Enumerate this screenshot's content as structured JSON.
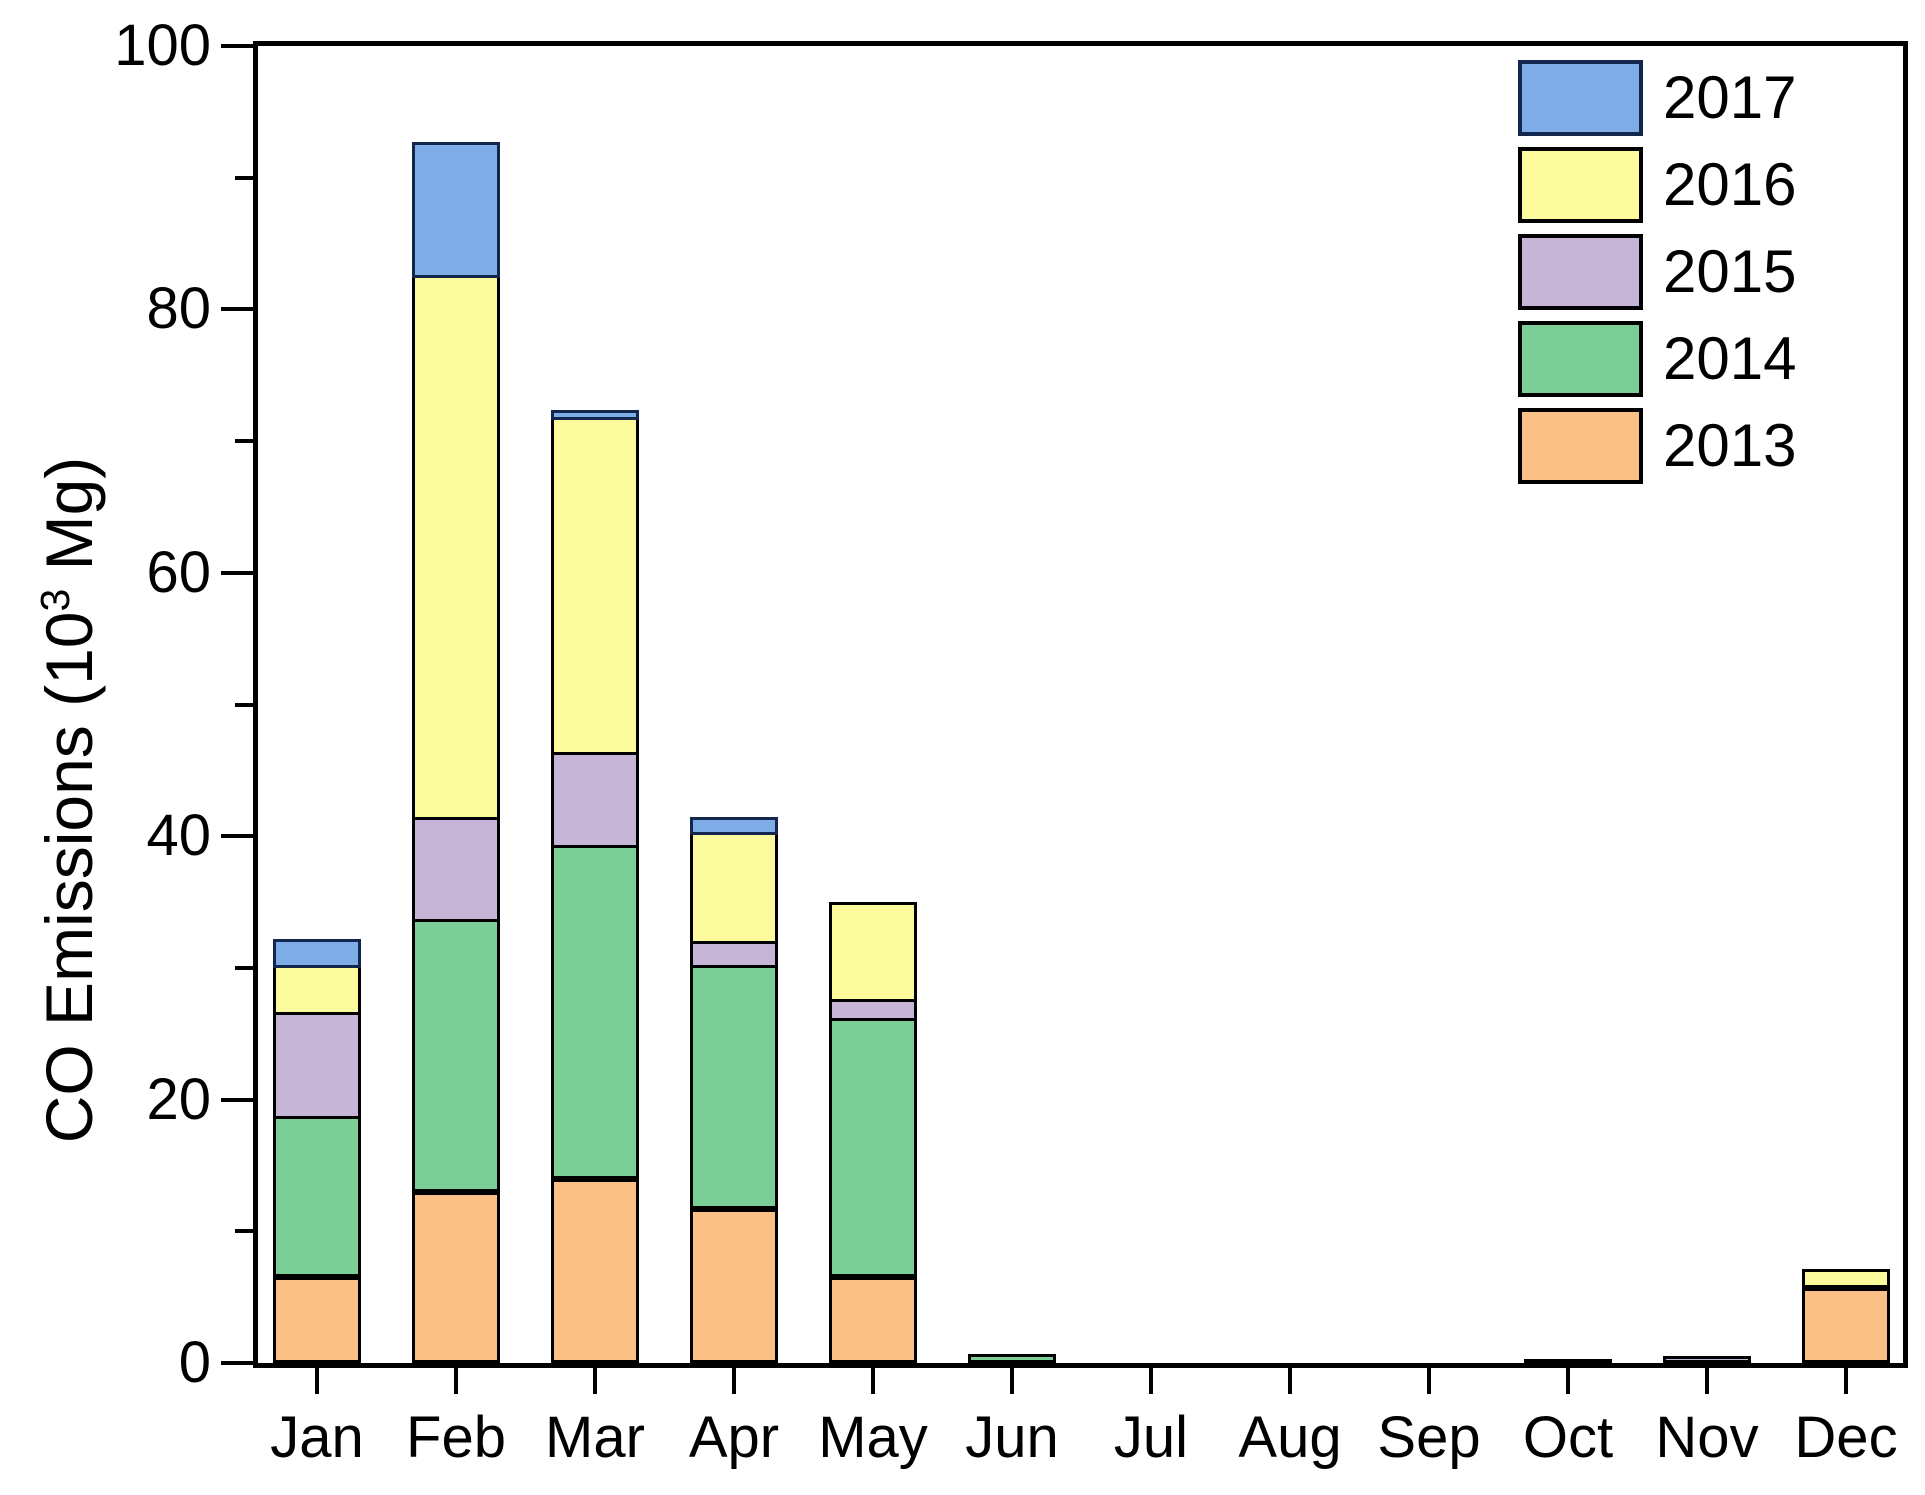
{
  "figure": {
    "background": "#ffffff",
    "frame_color": "#000000"
  },
  "y_axis": {
    "title_prefix": "CO Emissions (10",
    "title_sup": "3",
    "title_suffix": " Mg)"
  },
  "chart_data": {
    "type": "bar",
    "stacked": true,
    "title": "",
    "xlabel": "",
    "ylabel": "CO Emissions (10^3 Mg)",
    "grid": false,
    "ylim": [
      0,
      100
    ],
    "yticks_major": [
      0,
      20,
      40,
      60,
      80,
      100
    ],
    "yticks_minor": [
      10,
      30,
      50,
      70,
      90
    ],
    "categories": [
      "Jan",
      "Feb",
      "Mar",
      "Apr",
      "May",
      "Jun",
      "Jul",
      "Aug",
      "Sep",
      "Oct",
      "Nov",
      "Dec"
    ],
    "series": [
      {
        "name": "2013",
        "color": "#FBC086",
        "border": "#000000",
        "values": [
          6.5,
          13.0,
          14.0,
          11.7,
          6.5,
          0,
          0,
          0,
          0,
          0,
          0,
          5.7
        ]
      },
      {
        "name": "2014",
        "color": "#7BCE96",
        "border": "#000000",
        "values": [
          12.0,
          20.5,
          25.1,
          18.3,
          19.5,
          0.7,
          0,
          0,
          0,
          0.3,
          0,
          0
        ]
      },
      {
        "name": "2015",
        "color": "#C6B5D6",
        "border": "#000000",
        "values": [
          7.9,
          7.7,
          7.1,
          1.8,
          1.4,
          0,
          0,
          0,
          0,
          0,
          0.5,
          0
        ]
      },
      {
        "name": "2016",
        "color": "#FBFB9D",
        "border": "#000000",
        "values": [
          3.6,
          41.2,
          25.4,
          8.3,
          7.4,
          0,
          0,
          0,
          0,
          0,
          0,
          1.2
        ]
      },
      {
        "name": "2017",
        "color": "#7EACE6",
        "border": "#13264D",
        "values": [
          2.0,
          10.1,
          0.5,
          1.1,
          0,
          0,
          0,
          0,
          0,
          0,
          0,
          0
        ]
      }
    ],
    "legend": {
      "position": "top-right",
      "entries_top_to_bottom": [
        "2017",
        "2016",
        "2015",
        "2014",
        "2013"
      ]
    }
  }
}
